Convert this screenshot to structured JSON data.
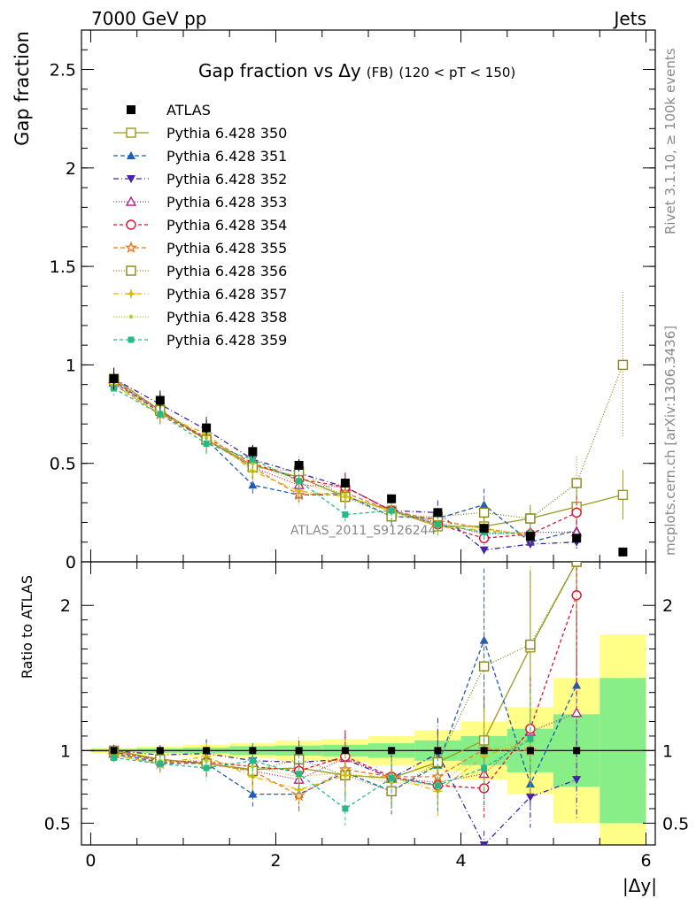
{
  "header": {
    "left": "7000 GeV pp",
    "right": "Jets"
  },
  "side_labels": {
    "rivet": "Rivet 3.1.10, ≥ 100k events",
    "mcplots": "mcplots.cern.ch [arXiv:1306.3436]"
  },
  "watermark": "ATLAS_2011_S9126244",
  "chart_data": [
    {
      "type": "line",
      "title_main": "Gap fraction vs",
      "title_sym": "Δy",
      "title_fb": "(FB)",
      "title_range": "(120 < pT < 150)",
      "ylabel": "Gap fraction",
      "ylim": [
        0,
        2.7
      ],
      "yticks": [
        {
          "v": 0,
          "label": "0"
        },
        {
          "v": 0.5,
          "label": "0.5"
        },
        {
          "v": 1,
          "label": "1"
        },
        {
          "v": 1.5,
          "label": "1.5"
        },
        {
          "v": 2,
          "label": "2"
        },
        {
          "v": 2.5,
          "label": "2.5"
        }
      ],
      "x": [
        0.25,
        0.75,
        1.25,
        1.75,
        2.25,
        2.75,
        3.25,
        3.75,
        4.25,
        4.75,
        5.25,
        5.75
      ],
      "data": {
        "name": "ATLAS",
        "color": "#000000",
        "values": [
          0.93,
          0.82,
          0.68,
          0.56,
          0.49,
          0.4,
          0.32,
          0.25,
          0.17,
          0.13,
          0.12,
          0.05
        ]
      },
      "series": [
        {
          "name": "Pythia 6.428 350",
          "color": "#999922",
          "marker": "square-open",
          "dash": "",
          "values": [
            0.93,
            0.77,
            0.62,
            0.49,
            0.43,
            0.33,
            0.26,
            0.18,
            0.18,
            0.22,
            0.28,
            0.34
          ]
        },
        {
          "name": "Pythia 6.428 351",
          "color": "#1f5cb8",
          "marker": "triangle-up",
          "dash": "5,3",
          "values": [
            0.91,
            0.76,
            0.62,
            0.39,
            0.34,
            0.34,
            0.23,
            0.22,
            0.29,
            0.1,
            0.16,
            null
          ]
        },
        {
          "name": "Pythia 6.428 352",
          "color": "#4422aa",
          "marker": "triangle-down",
          "dash": "6,3,1,3",
          "values": [
            0.93,
            0.8,
            0.67,
            0.52,
            0.45,
            0.38,
            0.26,
            0.25,
            0.06,
            0.09,
            0.1,
            null
          ]
        },
        {
          "name": "Pythia 6.428 353",
          "color": "#bb2288",
          "marker": "triangle-open",
          "dash": "1,2",
          "values": [
            0.91,
            0.77,
            0.62,
            0.48,
            0.39,
            0.38,
            0.26,
            0.2,
            0.14,
            0.15,
            0.15,
            null
          ]
        },
        {
          "name": "Pythia 6.428 354",
          "color": "#dd1133",
          "marker": "circle-open",
          "dash": "4,3",
          "values": [
            0.92,
            0.76,
            0.63,
            0.5,
            0.42,
            0.38,
            0.26,
            0.19,
            0.12,
            0.14,
            0.25,
            null
          ]
        },
        {
          "name": "Pythia 6.428 355",
          "color": "#ee7722",
          "marker": "star-open",
          "dash": "5,3",
          "values": [
            0.9,
            0.75,
            0.62,
            0.48,
            0.34,
            0.35,
            0.26,
            0.21,
            0.17,
            0.13,
            null,
            null
          ]
        },
        {
          "name": "Pythia 6.428 356",
          "color": "#888811",
          "marker": "square-open",
          "dash": "1,2",
          "values": [
            0.92,
            0.77,
            0.62,
            0.48,
            0.46,
            0.33,
            0.23,
            0.23,
            0.25,
            0.22,
            0.4,
            1.0
          ]
        },
        {
          "name": "Pythia 6.428 357",
          "color": "#ddbb00",
          "marker": "star-small",
          "dash": "6,3,1,3",
          "values": [
            0.9,
            0.75,
            0.65,
            0.46,
            0.36,
            0.33,
            0.26,
            0.18,
            0.16,
            0.14,
            null,
            null
          ]
        },
        {
          "name": "Pythia 6.428 358",
          "color": "#bbcc22",
          "marker": "dot",
          "dash": "1,2",
          "values": [
            0.91,
            0.76,
            0.63,
            0.5,
            0.4,
            0.34,
            0.25,
            0.19,
            0.17,
            0.14,
            null,
            null
          ]
        },
        {
          "name": "Pythia 6.428 359",
          "color": "#22bb88",
          "marker": "square-small",
          "dash": "4,3",
          "values": [
            0.88,
            0.75,
            0.6,
            0.52,
            0.41,
            0.24,
            0.26,
            0.19,
            0.15,
            0.14,
            null,
            null
          ]
        }
      ]
    },
    {
      "type": "line",
      "ylabel": "Ratio to ATLAS",
      "xlabel": "|Δy|",
      "ylim": [
        0.35,
        2.3
      ],
      "xlim": [
        -0.1,
        6.1
      ],
      "yticks": [
        {
          "v": 0.5,
          "label": "0.5"
        },
        {
          "v": 1,
          "label": "1"
        },
        {
          "v": 2,
          "label": "2"
        }
      ],
      "xticks": [
        {
          "v": 0,
          "label": "0"
        },
        {
          "v": 2,
          "label": "2"
        },
        {
          "v": 4,
          "label": "4"
        },
        {
          "v": 6,
          "label": "6"
        }
      ],
      "band_x": [
        0,
        0.5,
        1,
        1.5,
        2,
        2.5,
        3,
        3.5,
        4,
        4.5,
        5,
        5.5,
        6
      ],
      "band_stat": [
        0.01,
        0.015,
        0.02,
        0.03,
        0.035,
        0.04,
        0.05,
        0.07,
        0.1,
        0.15,
        0.25,
        0.5
      ],
      "band_tot": [
        0.02,
        0.03,
        0.04,
        0.05,
        0.07,
        0.08,
        0.1,
        0.14,
        0.2,
        0.3,
        0.5,
        0.8
      ],
      "series": [
        {
          "name": "Pythia 6.428 350",
          "values": [
            1.0,
            0.94,
            0.91,
            0.87,
            0.88,
            0.83,
            0.81,
            0.92,
            1.07,
            1.71,
            2.3,
            null
          ]
        },
        {
          "name": "Pythia 6.428 351",
          "values": [
            0.98,
            0.92,
            0.91,
            0.7,
            0.7,
            0.85,
            0.72,
            0.9,
            1.76,
            0.77,
            1.45,
            null
          ]
        },
        {
          "name": "Pythia 6.428 352",
          "values": [
            1.0,
            0.97,
            0.98,
            0.93,
            0.92,
            0.94,
            0.81,
            0.98,
            0.35,
            0.68,
            0.8,
            null
          ]
        },
        {
          "name": "Pythia 6.428 353",
          "values": [
            0.98,
            0.94,
            0.91,
            0.86,
            0.8,
            0.95,
            0.81,
            0.78,
            0.84,
            1.13,
            1.26,
            null
          ]
        },
        {
          "name": "Pythia 6.428 354",
          "values": [
            0.99,
            0.93,
            0.92,
            0.89,
            0.86,
            0.96,
            0.82,
            0.76,
            0.74,
            1.15,
            2.07,
            null
          ]
        },
        {
          "name": "Pythia 6.428 355",
          "values": [
            0.97,
            0.91,
            0.91,
            0.86,
            0.69,
            0.87,
            0.82,
            0.82,
            1.01,
            1.0,
            null,
            null
          ]
        },
        {
          "name": "Pythia 6.428 356",
          "values": [
            0.99,
            0.94,
            0.91,
            0.86,
            0.94,
            0.83,
            0.72,
            0.92,
            1.58,
            1.73,
            2.3,
            null
          ]
        },
        {
          "name": "Pythia 6.428 357",
          "values": [
            0.97,
            0.91,
            0.96,
            0.82,
            0.73,
            0.83,
            0.82,
            0.72,
            0.96,
            1.07,
            null,
            null
          ]
        },
        {
          "name": "Pythia 6.428 358",
          "values": [
            0.98,
            0.93,
            0.93,
            0.89,
            0.82,
            0.85,
            0.78,
            0.76,
            1.0,
            1.07,
            null,
            null
          ]
        },
        {
          "name": "Pythia 6.428 359",
          "values": [
            0.95,
            0.91,
            0.88,
            0.93,
            0.84,
            0.6,
            0.81,
            0.76,
            0.88,
            1.08,
            null,
            null
          ]
        }
      ]
    }
  ]
}
